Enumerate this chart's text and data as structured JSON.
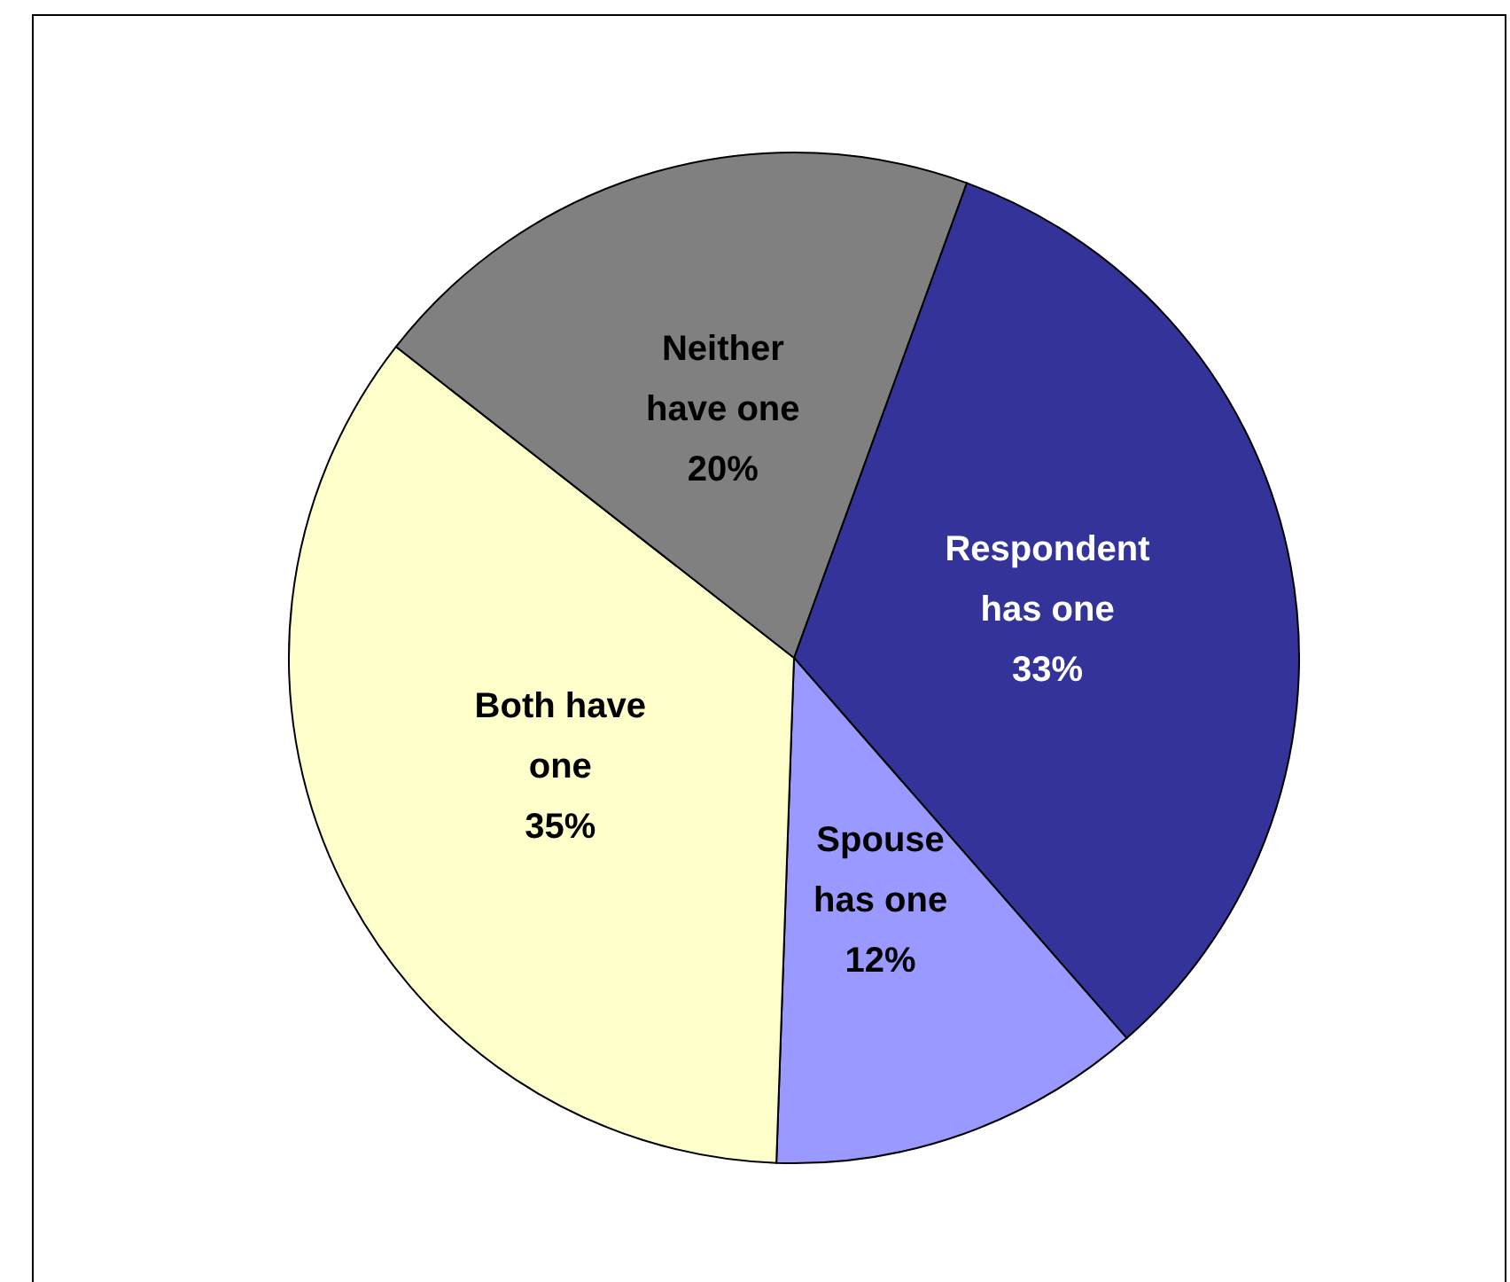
{
  "chart_data": {
    "type": "pie",
    "categories": [
      "Respondent\nhas one",
      "Spouse\nhas one",
      "Both have\none",
      "Neither\nhave one"
    ],
    "values": [
      33,
      12,
      35,
      20
    ],
    "colors": [
      "#333399",
      "#9999ff",
      "#ffffcc",
      "#808080"
    ],
    "value_labels": [
      "33%",
      "12%",
      "35%",
      "20%"
    ],
    "legend": false
  }
}
